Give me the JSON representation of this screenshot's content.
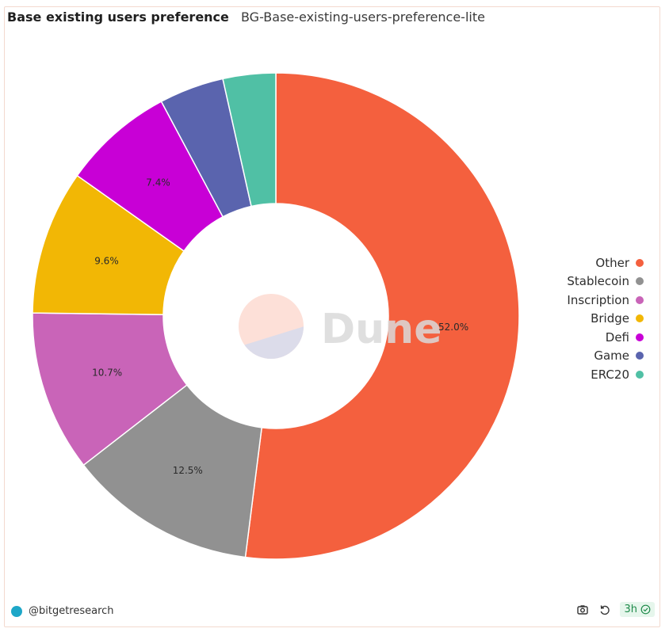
{
  "header": {
    "title": "Base existing users preference",
    "subtitle": "BG-Base-existing-users-preference-lite"
  },
  "chart_data": {
    "type": "pie",
    "donut": true,
    "categories": [
      "Other",
      "Stablecoin",
      "Inscription",
      "Bridge",
      "Defi",
      "Game",
      "ERC20"
    ],
    "values": [
      52.0,
      12.5,
      10.7,
      9.6,
      7.4,
      4.3,
      3.5
    ],
    "value_labels": [
      "52.0%",
      "12.5%",
      "10.7%",
      "9.6%",
      "7.4%",
      "",
      ""
    ],
    "colors": [
      "#f4603e",
      "#919191",
      "#c964b8",
      "#f2b705",
      "#c800d6",
      "#5a64ae",
      "#50c0a5"
    ],
    "legend_position": "right",
    "watermark": "Dune"
  },
  "footer": {
    "author": "@bitgetresearch",
    "age": "3h"
  },
  "icons": {
    "screenshot": "camera-icon",
    "refresh": "refresh-icon",
    "fresh": "check-circle-icon"
  }
}
